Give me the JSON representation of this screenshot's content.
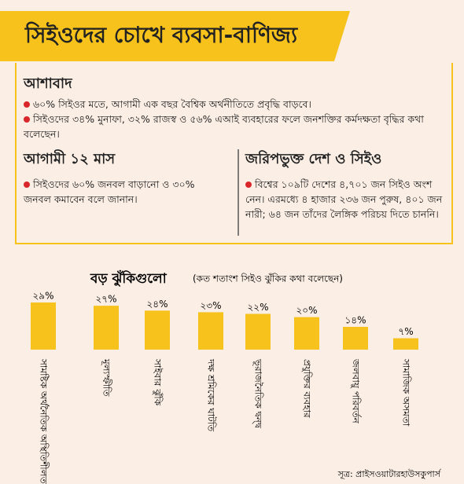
{
  "header": {
    "title": "সিইওদের চোখে ব্যবসা-বাণিজ্য"
  },
  "optimism": {
    "heading": "আশাবাদ",
    "points": [
      "৬০% সিইওর মতে, আগামী এক বছর বৈশ্বিক অর্থনীতিতে প্রবৃদ্ধি বাড়বে।",
      "সিইওদের ৩৪% মুনাফা, ৩২% রাজস্ব ও ৫৬% এআই ব্যবহারের ফলে জনশক্তির কর্মদক্ষতা বৃদ্ধির কথা বলেছেন।"
    ]
  },
  "next_months": {
    "heading": "আগামী ১২ মাস",
    "text": "সিইওদের ৬০% জনবল বাড়ানো ও ৩০% জনবল কমাবেন বলে জানান।"
  },
  "survey": {
    "heading": "জরিপভুক্ত দেশ ও সিইও",
    "text": "বিশ্বের ১০৯টি দেশের ৪,৭০১ জন সিইও অংশ নেন। এরমধ্যে ৪ হাজার ২৩৬ জন পুরুষ, ৪০১ জন নারী; ৬৪ জন তাঁদের লৈঙ্গিক পরিচয় দিতে চাননি।"
  },
  "chart_data": {
    "type": "bar",
    "title": "বড় ঝুঁকিগুলো",
    "subtitle": "(কত শতাংশ সিইও ঝুঁকির কথা বলেছেন)",
    "categories": [
      "সামষ্টিক অর্থনৈতিক অস্থিতিশীলতা",
      "মূল্যস্ফীতি",
      "সাইবার ঝুঁকি",
      "দক্ষ শ্রমিকের ঘাটতি",
      "ভূরাজনৈতিক দ্বন্দ্ব",
      "প্রযুক্তির ব্যবহার",
      "জলবায়ু পরিবর্তন",
      "সামাজিক অসমতা"
    ],
    "values": [
      29,
      27,
      24,
      23,
      22,
      20,
      14,
      7
    ],
    "value_labels": [
      "২৯%",
      "২৭%",
      "২৪%",
      "২৩%",
      "২২%",
      "২০%",
      "১৪%",
      "৭%"
    ],
    "color": "#f6c21b"
  },
  "source": "সূত্র: প্রাইসওয়াটারহাউসকুপার্স"
}
